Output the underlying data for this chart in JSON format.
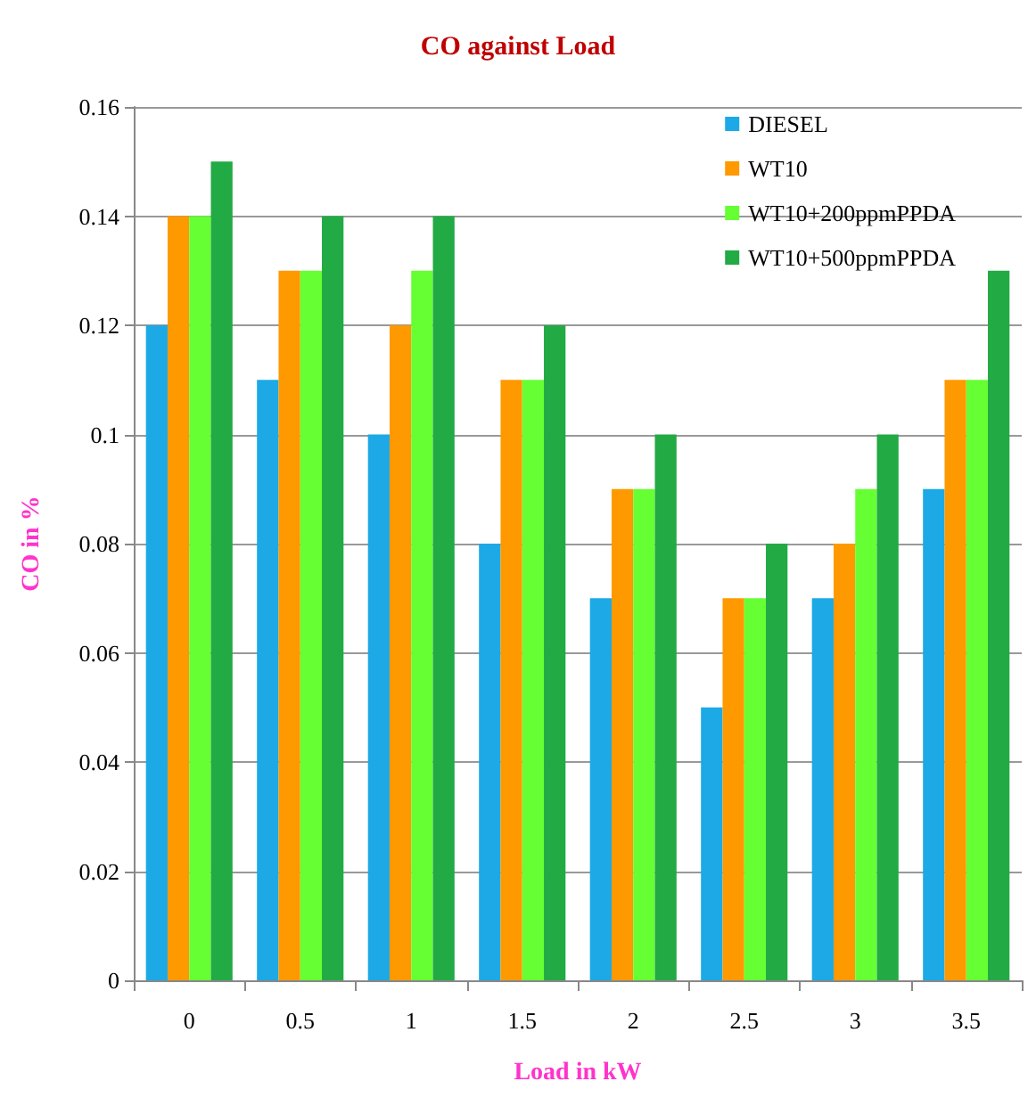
{
  "chart_data": {
    "type": "bar",
    "title": "CO against Load",
    "xlabel": "Load in kW",
    "ylabel": "CO in %",
    "categories": [
      "0",
      "0.5",
      "1",
      "1.5",
      "2",
      "2.5",
      "3",
      "3.5"
    ],
    "series": [
      {
        "name": "DIESEL",
        "color": "#1ca9e6",
        "values": [
          0.12,
          0.11,
          0.1,
          0.08,
          0.07,
          0.05,
          0.07,
          0.09
        ]
      },
      {
        "name": "WT10",
        "color": "#ff9900",
        "values": [
          0.14,
          0.13,
          0.12,
          0.11,
          0.09,
          0.07,
          0.08,
          0.11
        ]
      },
      {
        "name": "WT10+200ppmPPDA",
        "color": "#66ff33",
        "values": [
          0.14,
          0.13,
          0.13,
          0.11,
          0.09,
          0.07,
          0.09,
          0.11
        ]
      },
      {
        "name": "WT10+500ppmPPDA",
        "color": "#22aa44",
        "values": [
          0.15,
          0.14,
          0.14,
          0.12,
          0.1,
          0.08,
          0.1,
          0.13
        ]
      }
    ],
    "ylim": [
      0,
      0.16
    ],
    "yticks": [
      0,
      0.02,
      0.04,
      0.06,
      0.08,
      0.1,
      0.12,
      0.14,
      0.16
    ],
    "grid": "y",
    "legend": "top right"
  }
}
